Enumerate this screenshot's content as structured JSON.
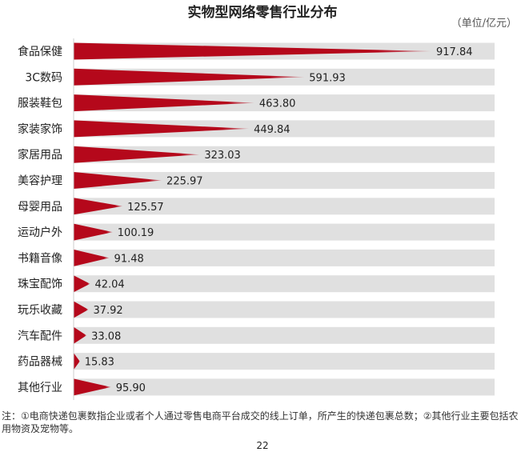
{
  "chart_data": {
    "type": "bar",
    "orientation": "horizontal",
    "title": "实物型网络零售行业分布",
    "unit": "（单位/亿元）",
    "categories": [
      "食品保健",
      "3C数码",
      "服装鞋包",
      "家装家饰",
      "家居用品",
      "美容护理",
      "母婴用品",
      "运动户外",
      "书籍音像",
      "珠宝配饰",
      "玩乐收藏",
      "汽车配件",
      "药品器械",
      "其他行业"
    ],
    "values": [
      917.84,
      591.93,
      463.8,
      449.84,
      323.03,
      225.97,
      125.57,
      100.19,
      91.48,
      42.04,
      37.92,
      33.08,
      15.83,
      95.9
    ],
    "labels": [
      "917.84",
      "591.93",
      "463.80",
      "449.84",
      "323.03",
      "225.97",
      "125.57",
      "100.19",
      "91.48",
      "42.04",
      "37.92",
      "33.08",
      "15.83",
      "95.90"
    ],
    "xlim": [
      0,
      1080
    ],
    "bar_color": "#b5081b",
    "track_color": "#e0e0e0",
    "grid": false
  },
  "footnote": "注：①电商快递包裹数指企业或者个人通过零售电商平台成交的线上订单，所产生的快递包裹总数；②其他行业主要包括农用物资及宠物等。",
  "page_number": "22"
}
